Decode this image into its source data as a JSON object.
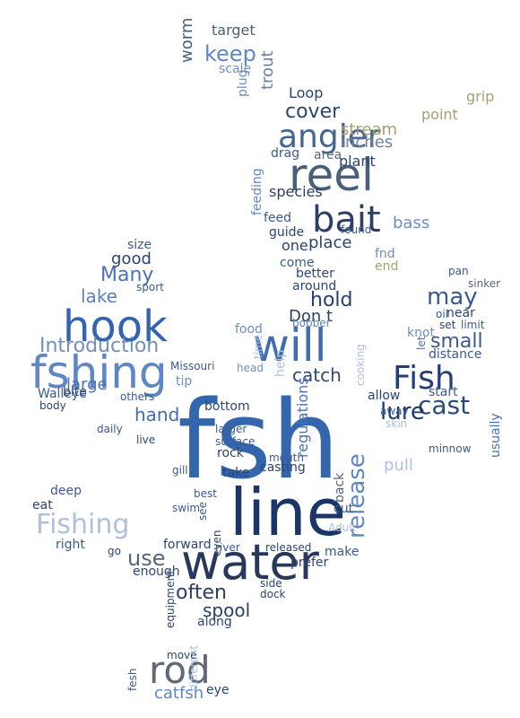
{
  "words": [
    {
      "text": "fsh",
      "color": "#3466ad"
    },
    {
      "text": "line",
      "color": "#1a3566"
    },
    {
      "text": "water",
      "color": "#27385c"
    },
    {
      "text": "reel",
      "color": "#4a6078"
    },
    {
      "text": "hook",
      "color": "#3264b0"
    },
    {
      "text": "fshing",
      "color": "#5f87c4"
    },
    {
      "text": "will",
      "color": "#3f6db0"
    },
    {
      "text": "Fish",
      "color": "#243e78"
    },
    {
      "text": "bait",
      "color": "#2c3e63"
    },
    {
      "text": "angler",
      "color": "#446590"
    },
    {
      "text": "rod",
      "color": "#5e6878"
    },
    {
      "text": "cast",
      "color": "#2a4a7e"
    },
    {
      "text": "lure",
      "color": "#1f3b6e"
    },
    {
      "text": "Fishing",
      "color": "#aec0dc"
    },
    {
      "text": "Introduction",
      "color": "#6f8fbf"
    },
    {
      "text": "release",
      "color": "#5f87c4"
    },
    {
      "text": "small",
      "color": "#3a5a90"
    },
    {
      "text": "may",
      "color": "#3a5a90"
    },
    {
      "text": "keep",
      "color": "#5f87c4"
    },
    {
      "text": "often",
      "color": "#2c3e63"
    },
    {
      "text": "catfsh",
      "color": "#5f87c4"
    },
    {
      "text": "cover",
      "color": "#2c4470"
    },
    {
      "text": "large",
      "color": "#4a72b8"
    },
    {
      "text": "hand",
      "color": "#3f6db0"
    },
    {
      "text": "use",
      "color": "#5a6478"
    },
    {
      "text": "spool",
      "color": "#2c3e63"
    },
    {
      "text": "catch",
      "color": "#2e4a7a"
    },
    {
      "text": "lake",
      "color": "#5a7fba"
    },
    {
      "text": "Many",
      "color": "#4a72b8"
    },
    {
      "text": "good",
      "color": "#2c4470"
    },
    {
      "text": "hold",
      "color": "#243e78"
    },
    {
      "text": "stream",
      "color": "#a8a070"
    },
    {
      "text": "inches",
      "color": "#7080a0"
    },
    {
      "text": "species",
      "color": "#2c3e63"
    },
    {
      "text": "place",
      "color": "#2c4470"
    },
    {
      "text": "one",
      "color": "#2c4470"
    },
    {
      "text": "bass",
      "color": "#6f8fbf"
    },
    {
      "text": "target",
      "color": "#4a6078"
    },
    {
      "text": "worm",
      "color": "#4a6078"
    },
    {
      "text": "scale",
      "color": "#6f8fbf"
    },
    {
      "text": "trout",
      "color": "#7080a0"
    },
    {
      "text": "plug",
      "color": "#6f8fbf"
    },
    {
      "text": "Loop",
      "color": "#2c4470"
    },
    {
      "text": "plant",
      "color": "#2c4470"
    },
    {
      "text": "point",
      "color": "#a8a070"
    },
    {
      "text": "grip",
      "color": "#a8a070"
    },
    {
      "text": "area",
      "color": "#5a6478"
    },
    {
      "text": "drag",
      "color": "#3a5a90"
    },
    {
      "text": "feed",
      "color": "#3a5a90"
    },
    {
      "text": "feeding",
      "color": "#5f87c4"
    },
    {
      "text": "Don t",
      "color": "#2c3e63"
    },
    {
      "text": "around",
      "color": "#2c4470"
    },
    {
      "text": "better",
      "color": "#2c4470"
    },
    {
      "text": "come",
      "color": "#3a5a90"
    },
    {
      "text": "guide",
      "color": "#2c4470"
    },
    {
      "text": "end",
      "color": "#a8a070"
    },
    {
      "text": "fnd",
      "color": "#6f8fbf"
    },
    {
      "text": "found",
      "color": "#3a5a90"
    },
    {
      "text": "help",
      "color": "#aec0dc"
    },
    {
      "text": "time",
      "color": "#aec0dc"
    },
    {
      "text": "food",
      "color": "#6f8fbf"
    },
    {
      "text": "head",
      "color": "#6f8fbf"
    },
    {
      "text": "tip",
      "color": "#6f8fbf"
    },
    {
      "text": "bottom",
      "color": "#2c4470"
    },
    {
      "text": "larger",
      "color": "#3a5a90"
    },
    {
      "text": "rock",
      "color": "#2c4470"
    },
    {
      "text": "surface",
      "color": "#3a5a90"
    },
    {
      "text": "mouth",
      "color": "#3a5a90"
    },
    {
      "text": "casting",
      "color": "#2c4470"
    },
    {
      "text": "take",
      "color": "#2c4470"
    },
    {
      "text": "gill",
      "color": "#3a5a90"
    },
    {
      "text": "live",
      "color": "#2c4470"
    },
    {
      "text": "regulations",
      "color": "#4a72b8"
    },
    {
      "text": "bobber",
      "color": "#5a7fba"
    },
    {
      "text": "cooking",
      "color": "#aec0dc"
    },
    {
      "text": "allow",
      "color": "#2c4470"
    },
    {
      "text": "distance",
      "color": "#3a5a90"
    },
    {
      "text": "start",
      "color": "#3a5a90"
    },
    {
      "text": "usually",
      "color": "#4a72b8"
    },
    {
      "text": "minnow",
      "color": "#3a5a90"
    },
    {
      "text": "knot",
      "color": "#6f8fbf"
    },
    {
      "text": "near",
      "color": "#2c4470"
    },
    {
      "text": "limit",
      "color": "#3a5a90"
    },
    {
      "text": "set",
      "color": "#2c4470"
    },
    {
      "text": "pan",
      "color": "#3a5a90"
    },
    {
      "text": "sinker",
      "color": "#5a6478"
    },
    {
      "text": "oil",
      "color": "#3a5a90"
    },
    {
      "text": "let",
      "color": "#4a72b8"
    },
    {
      "text": "pull",
      "color": "#aec0dc"
    },
    {
      "text": "skin",
      "color": "#aec0dc"
    },
    {
      "text": "away",
      "color": "#3a5a90"
    },
    {
      "text": "back",
      "color": "#5a6478"
    },
    {
      "text": "cut",
      "color": "#3a5a90"
    },
    {
      "text": "make",
      "color": "#3a5a90"
    },
    {
      "text": "Adult",
      "color": "#aec0dc"
    },
    {
      "text": "prefer",
      "color": "#2c4470"
    },
    {
      "text": "released",
      "color": "#2c4470"
    },
    {
      "text": "side",
      "color": "#2c4470"
    },
    {
      "text": "dock",
      "color": "#2c4470"
    },
    {
      "text": "river",
      "color": "#3a5a90"
    },
    {
      "text": "forward",
      "color": "#2c4470"
    },
    {
      "text": "right",
      "color": "#3a5a90"
    },
    {
      "text": "enough",
      "color": "#2c4470"
    },
    {
      "text": "equipment",
      "color": "#2c4470"
    },
    {
      "text": "along",
      "color": "#2c4470"
    },
    {
      "text": "eye",
      "color": "#2c4470"
    },
    {
      "text": "fesh",
      "color": "#3a5a90"
    },
    {
      "text": "different",
      "color": "#aec0dc"
    },
    {
      "text": "move",
      "color": "#2c4470"
    },
    {
      "text": "deep",
      "color": "#3a5a90"
    },
    {
      "text": "eat",
      "color": "#2c4470"
    },
    {
      "text": "go",
      "color": "#2c4470"
    },
    {
      "text": "bite",
      "color": "#2c4470"
    },
    {
      "text": "body",
      "color": "#2c4470"
    },
    {
      "text": "Walleye",
      "color": "#3a5a90"
    },
    {
      "text": "daily",
      "color": "#3a5a90"
    },
    {
      "text": "others",
      "color": "#3a5a90"
    },
    {
      "text": "Missouri",
      "color": "#3a5a90"
    },
    {
      "text": "sport",
      "color": "#3a5a90"
    },
    {
      "text": "size",
      "color": "#3a5a90"
    },
    {
      "text": "swim",
      "color": "#3a5a90"
    },
    {
      "text": "best",
      "color": "#3a5a90"
    },
    {
      "text": "even",
      "color": "#2c4470"
    },
    {
      "text": "see",
      "color": "#3a5a90"
    }
  ]
}
